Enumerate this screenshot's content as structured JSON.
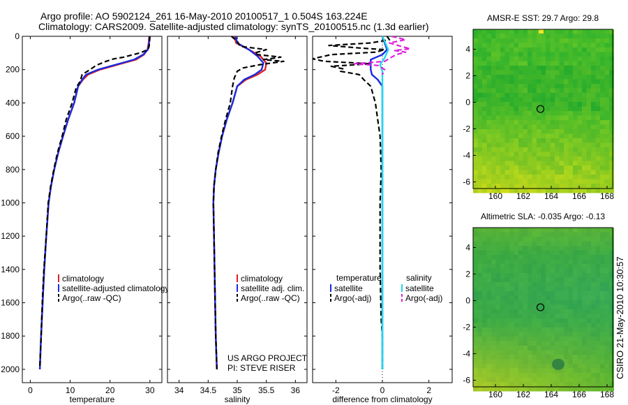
{
  "title": {
    "line1": "Argo profile: AO 5902124_261 16-May-2010 20100517_1 0.504S 163.224E",
    "line2": "Climatology: CARS2009. Satellite-adjusted climatology: synTS_20100515.nc (1.3d earlier)"
  },
  "side_stamp": "CSIRO 21-May-2010 10:30:57",
  "colors": {
    "climatology": "#e02020",
    "satellite": "#1a2ae0",
    "argo": "#000000",
    "salinity_satellite": "#20d8ee",
    "salinity_argo": "#e020e0",
    "map_green": "#3fbf3a"
  },
  "chart_data": [
    {
      "type": "line",
      "id": "temperature",
      "xlabel": "temperature",
      "ylabel": "",
      "xlim": [
        -2,
        33
      ],
      "ylim": [
        2080,
        0
      ],
      "xticks": [
        0,
        10,
        20,
        30
      ],
      "yticks": [
        0,
        200,
        400,
        600,
        800,
        1000,
        1200,
        1400,
        1600,
        1800,
        2000
      ],
      "legend": [
        "climatology",
        "satellite-adjusted climatology",
        "Argo(..raw -QC)"
      ],
      "series": [
        {
          "name": "climatology",
          "style": "solid",
          "color": "#e02020",
          "points": [
            [
              29.8,
              0
            ],
            [
              29.7,
              40
            ],
            [
              29.4,
              80
            ],
            [
              28.5,
              110
            ],
            [
              26.5,
              140
            ],
            [
              22,
              170
            ],
            [
              17.5,
              200
            ],
            [
              14.5,
              230
            ],
            [
              13.2,
              260
            ],
            [
              12,
              300
            ],
            [
              11,
              400
            ],
            [
              9.5,
              500
            ],
            [
              8.2,
              600
            ],
            [
              7,
              700
            ],
            [
              6,
              800
            ],
            [
              5.2,
              900
            ],
            [
              4.6,
              1000
            ],
            [
              4,
              1200
            ],
            [
              3.5,
              1400
            ],
            [
              3.1,
              1600
            ],
            [
              2.7,
              1800
            ],
            [
              2.4,
              2000
            ]
          ]
        },
        {
          "name": "satellite-adjusted climatology",
          "style": "solid",
          "color": "#1a2ae0",
          "points": [
            [
              29.9,
              0
            ],
            [
              29.8,
              40
            ],
            [
              29.5,
              80
            ],
            [
              28.3,
              110
            ],
            [
              26,
              140
            ],
            [
              21.5,
              170
            ],
            [
              17,
              200
            ],
            [
              14,
              230
            ],
            [
              13,
              260
            ],
            [
              12,
              300
            ],
            [
              11,
              400
            ],
            [
              9.5,
              500
            ],
            [
              8.2,
              600
            ],
            [
              7,
              700
            ],
            [
              6,
              800
            ],
            [
              5.2,
              900
            ],
            [
              4.6,
              1000
            ],
            [
              4,
              1200
            ],
            [
              3.5,
              1400
            ],
            [
              3.1,
              1600
            ],
            [
              2.7,
              1800
            ],
            [
              2.4,
              2000
            ]
          ]
        },
        {
          "name": "Argo(..raw -QC)",
          "style": "dashed",
          "color": "#000000",
          "points": [
            [
              30,
              0
            ],
            [
              29.9,
              30
            ],
            [
              29.8,
              60
            ],
            [
              29.5,
              80
            ],
            [
              27.5,
              100
            ],
            [
              25,
              115
            ],
            [
              23.5,
              125
            ],
            [
              21,
              135
            ],
            [
              19,
              150
            ],
            [
              16.5,
              175
            ],
            [
              15,
              200
            ],
            [
              13,
              230
            ],
            [
              12.5,
              270
            ],
            [
              11.5,
              310
            ],
            [
              10.5,
              400
            ],
            [
              9,
              500
            ],
            [
              8,
              600
            ],
            [
              6.8,
              700
            ],
            [
              5.9,
              800
            ],
            [
              5.1,
              900
            ],
            [
              4.5,
              1000
            ],
            [
              4,
              1200
            ],
            [
              3.4,
              1400
            ],
            [
              3,
              1600
            ],
            [
              2.7,
              1800
            ],
            [
              2.4,
              1980
            ]
          ]
        }
      ]
    },
    {
      "type": "line",
      "id": "salinity",
      "xlabel": "salinity",
      "ylabel": "",
      "xlim": [
        33.8,
        36.2
      ],
      "ylim": [
        2080,
        0
      ],
      "xticks": [
        34,
        34.5,
        35,
        35.5,
        36
      ],
      "legend": [
        "climatology",
        "satellite adj. clim.",
        "Argo(..raw -QC)"
      ],
      "annotation": [
        "US ARGO PROJECT",
        "PI: STEVE RISER"
      ],
      "series": [
        {
          "name": "climatology",
          "style": "solid",
          "color": "#e02020",
          "points": [
            [
              34.95,
              0
            ],
            [
              34.98,
              40
            ],
            [
              35.2,
              80
            ],
            [
              35.4,
              120
            ],
            [
              35.5,
              160
            ],
            [
              35.48,
              200
            ],
            [
              35.35,
              230
            ],
            [
              35.15,
              260
            ],
            [
              35.0,
              300
            ],
            [
              34.92,
              400
            ],
            [
              34.82,
              500
            ],
            [
              34.74,
              600
            ],
            [
              34.68,
              700
            ],
            [
              34.63,
              800
            ],
            [
              34.6,
              900
            ],
            [
              34.59,
              1000
            ],
            [
              34.6,
              1200
            ],
            [
              34.61,
              1400
            ],
            [
              34.62,
              1600
            ],
            [
              34.63,
              1800
            ],
            [
              34.65,
              2000
            ]
          ]
        },
        {
          "name": "satellite adj. clim.",
          "style": "solid",
          "color": "#1a2ae0",
          "points": [
            [
              34.97,
              0
            ],
            [
              35.0,
              40
            ],
            [
              35.2,
              80
            ],
            [
              35.35,
              120
            ],
            [
              35.45,
              160
            ],
            [
              35.42,
              200
            ],
            [
              35.3,
              230
            ],
            [
              35.12,
              260
            ],
            [
              35.0,
              300
            ],
            [
              34.92,
              400
            ],
            [
              34.82,
              500
            ],
            [
              34.74,
              600
            ],
            [
              34.68,
              700
            ],
            [
              34.63,
              800
            ],
            [
              34.6,
              900
            ],
            [
              34.59,
              1000
            ],
            [
              34.6,
              1200
            ],
            [
              34.61,
              1400
            ],
            [
              34.62,
              1600
            ],
            [
              34.63,
              1800
            ],
            [
              34.65,
              2000
            ]
          ]
        },
        {
          "name": "Argo(..raw -QC)",
          "style": "dashed",
          "color": "#000000",
          "points": [
            [
              34.9,
              0
            ],
            [
              35.0,
              30
            ],
            [
              35.05,
              60
            ],
            [
              35.5,
              80
            ],
            [
              35.3,
              100
            ],
            [
              35.35,
              110
            ],
            [
              35.75,
              125
            ],
            [
              35.45,
              140
            ],
            [
              35.8,
              150
            ],
            [
              35.4,
              170
            ],
            [
              35.1,
              190
            ],
            [
              35.0,
              210
            ],
            [
              34.95,
              250
            ],
            [
              34.92,
              300
            ],
            [
              34.88,
              400
            ],
            [
              34.8,
              500
            ],
            [
              34.73,
              600
            ],
            [
              34.67,
              700
            ],
            [
              34.63,
              800
            ],
            [
              34.6,
              900
            ],
            [
              34.59,
              1000
            ],
            [
              34.6,
              1200
            ],
            [
              34.61,
              1400
            ],
            [
              34.62,
              1600
            ],
            [
              34.63,
              1800
            ],
            [
              34.65,
              2000
            ]
          ]
        }
      ]
    },
    {
      "type": "line",
      "id": "difference",
      "xlabel": "difference from climatology",
      "ylabel": "",
      "xlim": [
        -3,
        3
      ],
      "ylim": [
        2080,
        0
      ],
      "xticks": [
        -2,
        0,
        2
      ],
      "legend_temperature": [
        "temperature",
        "satellite",
        "Argo(-adj)"
      ],
      "legend_salinity": [
        "salinity",
        "satellite",
        "Argo(-adj)"
      ],
      "series": [
        {
          "name": "temperature satellite",
          "style": "solid",
          "color": "#1a2ae0",
          "points": [
            [
              0,
              0
            ],
            [
              0.1,
              40
            ],
            [
              0.2,
              80
            ],
            [
              0.0,
              110
            ],
            [
              -0.5,
              140
            ],
            [
              -0.5,
              170
            ],
            [
              -0.5,
              200
            ],
            [
              -0.45,
              230
            ],
            [
              -0.2,
              260
            ],
            [
              0,
              300
            ],
            [
              0,
              400
            ],
            [
              0,
              2000
            ]
          ]
        },
        {
          "name": "temperature Argo(-adj)",
          "style": "dashed",
          "color": "#000000",
          "points": [
            [
              0.2,
              0
            ],
            [
              0.3,
              20
            ],
            [
              -0.5,
              40
            ],
            [
              -2.3,
              55
            ],
            [
              -1.0,
              70
            ],
            [
              0.1,
              80
            ],
            [
              -0.3,
              95
            ],
            [
              -2.2,
              110
            ],
            [
              -3.0,
              135
            ],
            [
              -2.5,
              150
            ],
            [
              -0.5,
              165
            ],
            [
              -2.2,
              180
            ],
            [
              -1.7,
              195
            ],
            [
              -1.8,
              210
            ],
            [
              -1.0,
              230
            ],
            [
              -0.8,
              260
            ],
            [
              -0.5,
              300
            ],
            [
              -0.3,
              400
            ],
            [
              -0.2,
              500
            ],
            [
              -0.1,
              600
            ],
            [
              -0.05,
              800
            ],
            [
              -0.1,
              1000
            ],
            [
              -0.1,
              1400
            ],
            [
              -0.05,
              1700
            ],
            [
              0,
              1800
            ],
            [
              0,
              2000
            ]
          ]
        },
        {
          "name": "salinity satellite",
          "style": "solid",
          "color": "#20d8ee",
          "points": [
            [
              0,
              0
            ],
            [
              0.1,
              30
            ],
            [
              0.25,
              80
            ],
            [
              0.1,
              130
            ],
            [
              -0.1,
              170
            ],
            [
              0,
              210
            ],
            [
              0,
              400
            ],
            [
              0,
              1000
            ],
            [
              0,
              2000
            ]
          ]
        },
        {
          "name": "salinity Argo(-adj)",
          "style": "dashed",
          "color": "#e020e0",
          "points": [
            [
              0.4,
              0
            ],
            [
              1.0,
              20
            ],
            [
              0.3,
              40
            ],
            [
              0.8,
              60
            ],
            [
              1.2,
              75
            ],
            [
              0.5,
              85
            ],
            [
              1.0,
              95
            ],
            [
              0.6,
              110
            ],
            [
              0.4,
              125
            ],
            [
              0.1,
              150
            ],
            [
              -1.2,
              165
            ],
            [
              -0.2,
              175
            ],
            [
              0.1,
              200
            ],
            [
              0,
              230
            ]
          ]
        }
      ]
    },
    {
      "type": "heatmap",
      "id": "sst_map",
      "title": "AMSR-E SST: 29.7 Argo: 29.8",
      "xlim": [
        158.4,
        168.4
      ],
      "ylim": [
        -6.5,
        5.5
      ],
      "xticks": [
        160,
        162,
        164,
        166,
        168
      ],
      "yticks": [
        -6,
        -4,
        -2,
        0,
        2,
        4
      ],
      "marker": {
        "lon": 163.224,
        "lat": -0.504
      }
    },
    {
      "type": "heatmap",
      "id": "sla_map",
      "title": "Altimetric SLA: -0.035 Argo: -0.13",
      "xlim": [
        158.4,
        168.4
      ],
      "ylim": [
        -6.5,
        5.5
      ],
      "xticks": [
        160,
        162,
        164,
        166,
        168
      ],
      "yticks": [
        -6,
        -4,
        -2,
        0,
        2,
        4
      ],
      "marker": {
        "lon": 163.224,
        "lat": -0.504
      }
    }
  ]
}
